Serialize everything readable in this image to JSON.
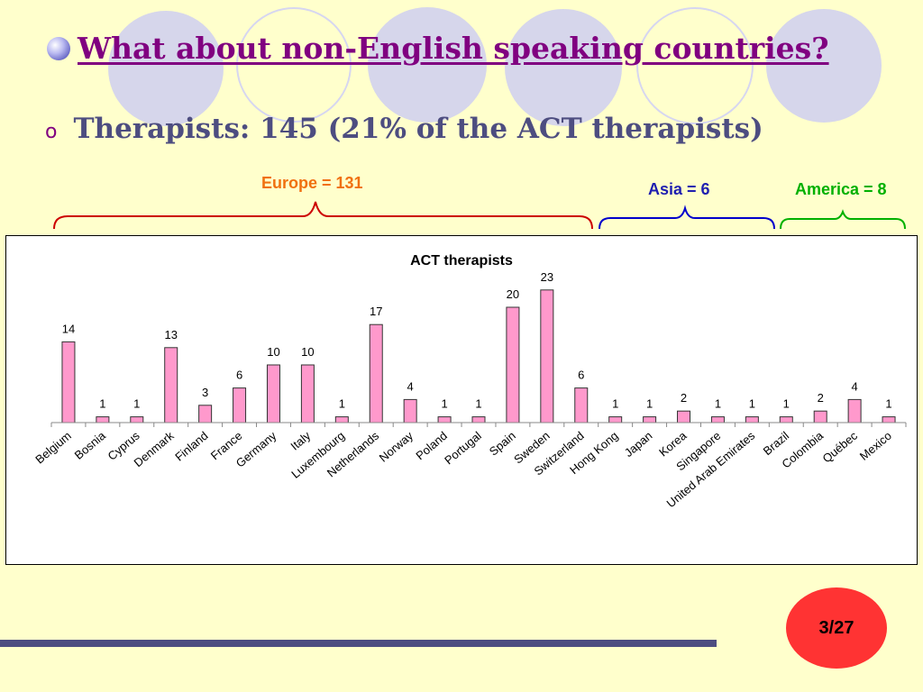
{
  "slide": {
    "title": "What about non-English speaking countries?",
    "subtitle": "Therapists: 145 (21% of the ACT therapists)",
    "page_number": "3/27"
  },
  "regions": [
    {
      "label": "Europe = 131",
      "color": "#F07010"
    },
    {
      "label": "Asia = 6",
      "color": "#1F1FB0"
    },
    {
      "label": "America = 8",
      "color": "#00B000"
    }
  ],
  "bracket_colors": [
    "#CC0000",
    "#0000CC",
    "#00B000"
  ],
  "colors": {
    "bar_fill": "#FF99CC",
    "bar_stroke": "#333333",
    "title_color": "#800080",
    "subtitle_color": "#4D4D80"
  },
  "chart_data": {
    "type": "bar",
    "title": "ACT therapists",
    "categories": [
      "Belgium",
      "Bosnia",
      "Cyprus",
      "Denmark",
      "Finland",
      "France",
      "Germany",
      "Italy",
      "Luxembourg",
      "Netherlands",
      "Norway",
      "Poland",
      "Portugal",
      "Spain",
      "Sweden",
      "Switzerland",
      "Hong Kong",
      "Japan",
      "Korea",
      "Singapore",
      "United Arab Emirates",
      "Brazil",
      "Colombia",
      "Québec",
      "Mexico"
    ],
    "values": [
      14,
      1,
      1,
      13,
      3,
      6,
      10,
      10,
      1,
      17,
      4,
      1,
      1,
      20,
      23,
      6,
      1,
      1,
      2,
      1,
      1,
      1,
      2,
      4,
      1
    ],
    "ylim": [
      0,
      25
    ],
    "grid": false
  }
}
